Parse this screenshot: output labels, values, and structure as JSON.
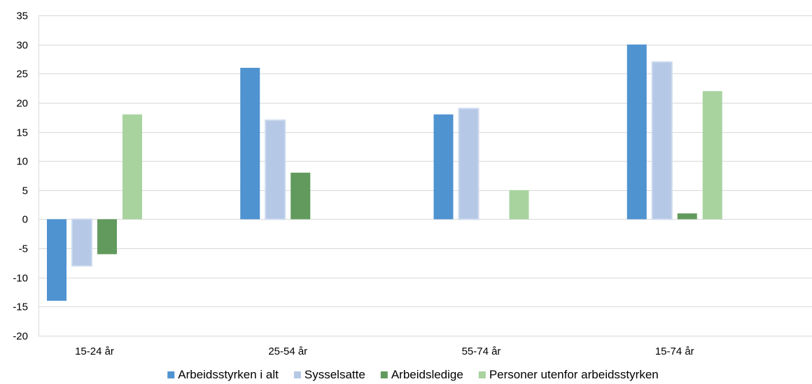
{
  "chart_data": {
    "type": "bar",
    "title": "",
    "xlabel": "",
    "ylabel": "",
    "categories": [
      "15-24 år",
      "25-54 år",
      "55-74 år",
      "15-74 år"
    ],
    "series": [
      {
        "name": "Arbeidsstyrken i alt",
        "values": [
          -14,
          26,
          18,
          30
        ],
        "color": "#4f93d1"
      },
      {
        "name": "Sysselsatte",
        "values": [
          -8,
          17,
          19,
          27
        ],
        "color": "#b5c8e6"
      },
      {
        "name": "Arbeidsledige",
        "values": [
          -6,
          8,
          0,
          1
        ],
        "color": "#629a5e"
      },
      {
        "name": "Personer utenfor arbeidsstyrken",
        "values": [
          18,
          0,
          5,
          22
        ],
        "color": "#a8d39f"
      }
    ],
    "ylim": [
      -20,
      35
    ],
    "yticks": [
      35,
      30,
      25,
      20,
      15,
      10,
      5,
      0,
      -5,
      -10,
      -15,
      -20
    ],
    "grid": true,
    "legend_position": "bottom"
  }
}
